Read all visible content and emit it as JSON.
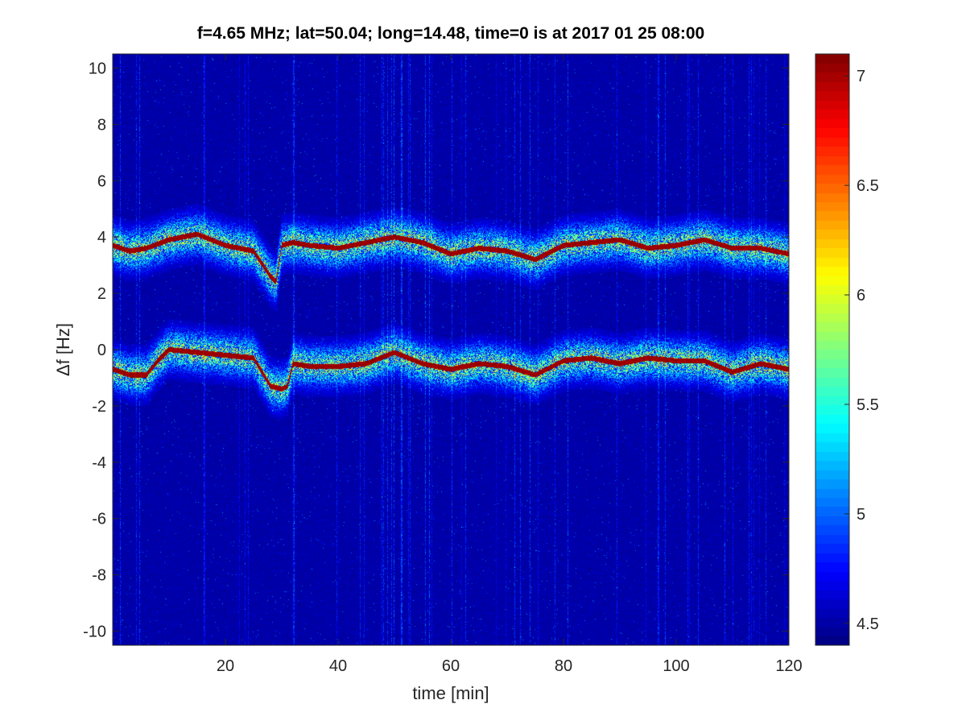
{
  "chart_data": {
    "type": "heatmap",
    "title": "f=4.65 MHz;  lat=50.04; long=14.48, time=0 is at 2017 01 25 08:00",
    "xlabel": "time [min]",
    "ylabel": "Δf [Hz]",
    "xlim": [
      0,
      120
    ],
    "ylim": [
      -10.5,
      10.5
    ],
    "xticks": [
      20,
      40,
      60,
      80,
      100,
      120
    ],
    "yticks": [
      10,
      8,
      6,
      4,
      2,
      0,
      -2,
      -4,
      -6,
      -8,
      -10
    ],
    "colormap": "jet",
    "clim": [
      4.4,
      7.1
    ],
    "colorbar_ticks": [
      7,
      6.5,
      6,
      5.5,
      5,
      4.5
    ],
    "grid": false,
    "traces": [
      {
        "time": [
          0,
          3,
          6,
          10,
          15,
          20,
          25,
          28,
          29,
          30,
          32,
          35,
          40,
          45,
          50,
          55,
          60,
          65,
          70,
          75,
          80,
          85,
          90,
          95,
          100,
          105,
          110,
          115,
          120
        ],
        "df": [
          3.7,
          3.5,
          3.6,
          3.9,
          4.1,
          3.7,
          3.5,
          2.6,
          2.4,
          3.7,
          3.8,
          3.7,
          3.6,
          3.8,
          4.0,
          3.8,
          3.4,
          3.6,
          3.5,
          3.2,
          3.7,
          3.8,
          3.9,
          3.6,
          3.7,
          3.9,
          3.6,
          3.6,
          3.4
        ]
      },
      {
        "time": [
          0,
          3,
          6,
          8,
          10,
          15,
          20,
          25,
          28,
          30,
          31,
          32,
          35,
          40,
          45,
          50,
          55,
          60,
          65,
          70,
          75,
          80,
          85,
          90,
          95,
          100,
          105,
          110,
          115,
          120
        ],
        "df": [
          -0.7,
          -0.9,
          -0.9,
          -0.4,
          0.0,
          -0.1,
          -0.2,
          -0.3,
          -1.3,
          -1.4,
          -1.3,
          -0.5,
          -0.6,
          -0.6,
          -0.5,
          -0.1,
          -0.5,
          -0.7,
          -0.5,
          -0.6,
          -0.9,
          -0.4,
          -0.3,
          -0.5,
          -0.3,
          -0.4,
          -0.4,
          -0.8,
          -0.5,
          -0.7
        ]
      }
    ]
  }
}
